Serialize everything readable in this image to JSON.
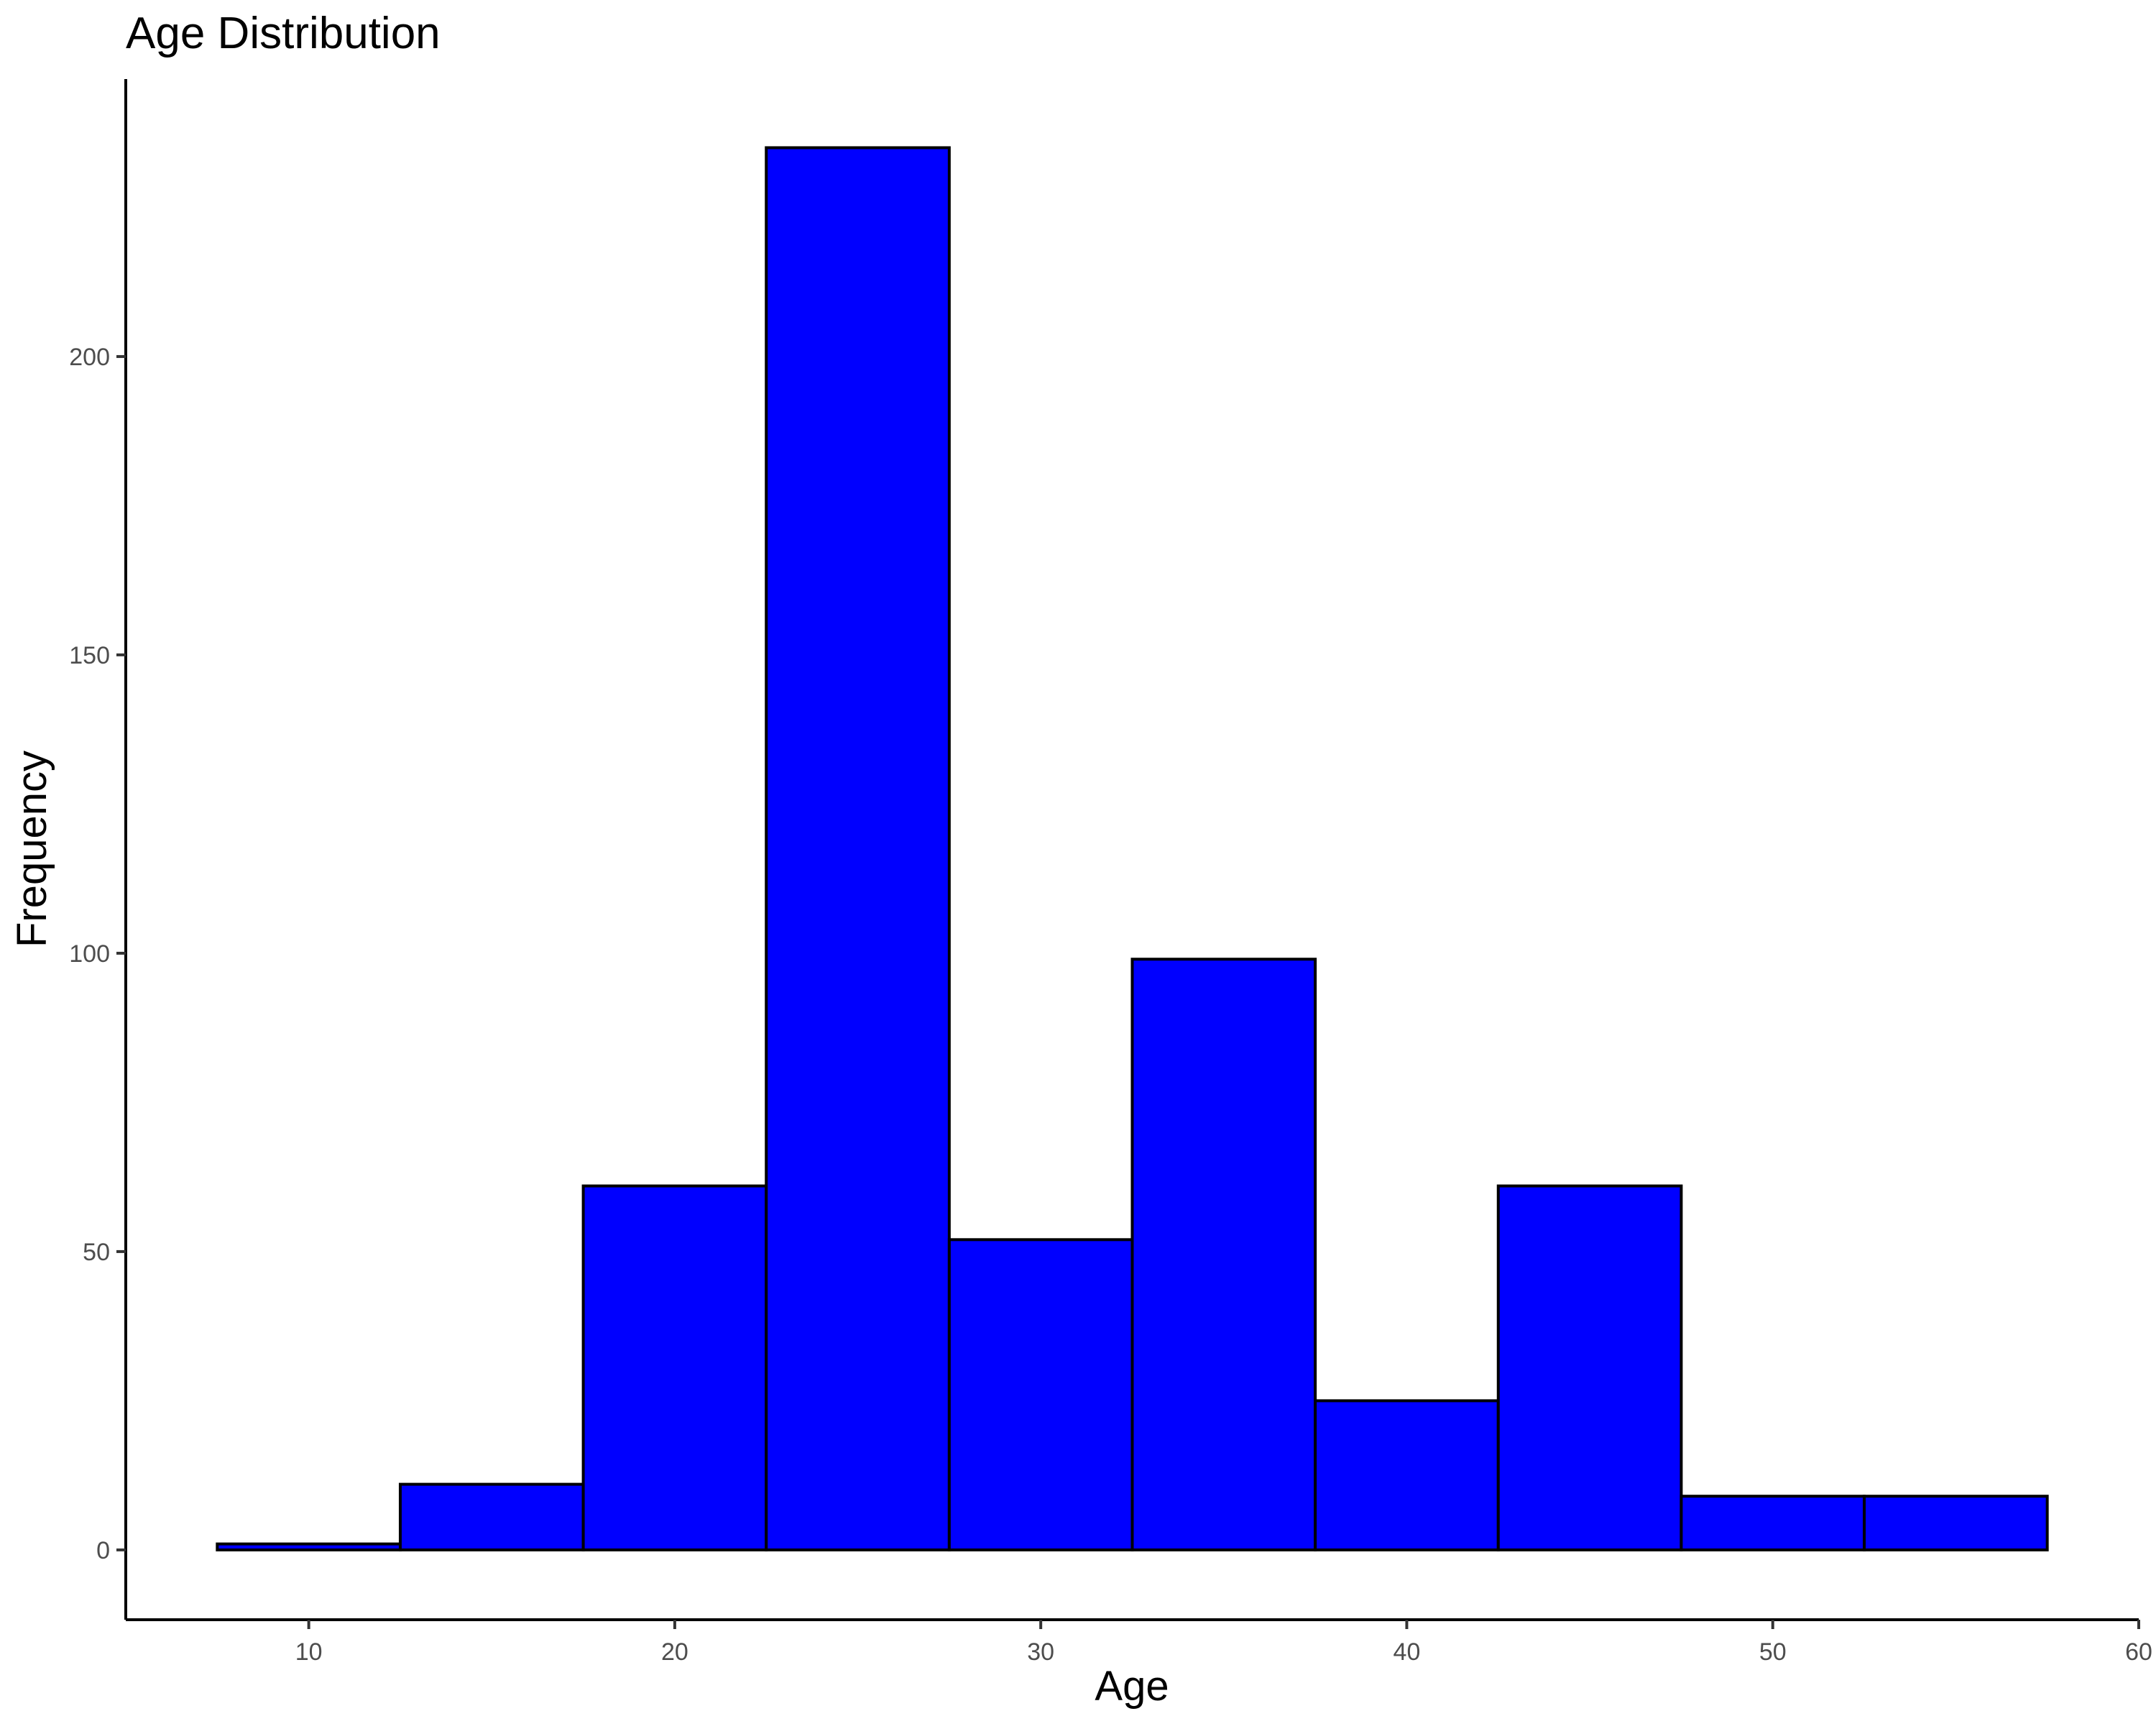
{
  "chart_data": {
    "type": "bar",
    "title": "Age Distribution",
    "xlabel": "Age",
    "ylabel": "Frequency",
    "xlim": [
      5,
      60
    ],
    "ylim": [
      -11.7,
      246.5
    ],
    "x_ticks": [
      10,
      20,
      30,
      40,
      50,
      60
    ],
    "y_ticks": [
      0,
      50,
      100,
      150,
      200
    ],
    "bins": [
      {
        "start": 7.5,
        "end": 12.5,
        "count": 1
      },
      {
        "start": 12.5,
        "end": 17.5,
        "count": 11
      },
      {
        "start": 17.5,
        "end": 22.5,
        "count": 61
      },
      {
        "start": 22.5,
        "end": 27.5,
        "count": 235
      },
      {
        "start": 27.5,
        "end": 32.5,
        "count": 52
      },
      {
        "start": 32.5,
        "end": 37.5,
        "count": 99
      },
      {
        "start": 37.5,
        "end": 42.5,
        "count": 25
      },
      {
        "start": 42.5,
        "end": 47.5,
        "count": 61
      },
      {
        "start": 47.5,
        "end": 52.5,
        "count": 9
      },
      {
        "start": 52.5,
        "end": 57.5,
        "count": 9
      }
    ],
    "grid": false,
    "legend": "none",
    "colors": {
      "bar_fill": "#0000ff",
      "bar_stroke": "#000000",
      "axis": "#000000",
      "tick_text": "#4d4d4d"
    }
  }
}
